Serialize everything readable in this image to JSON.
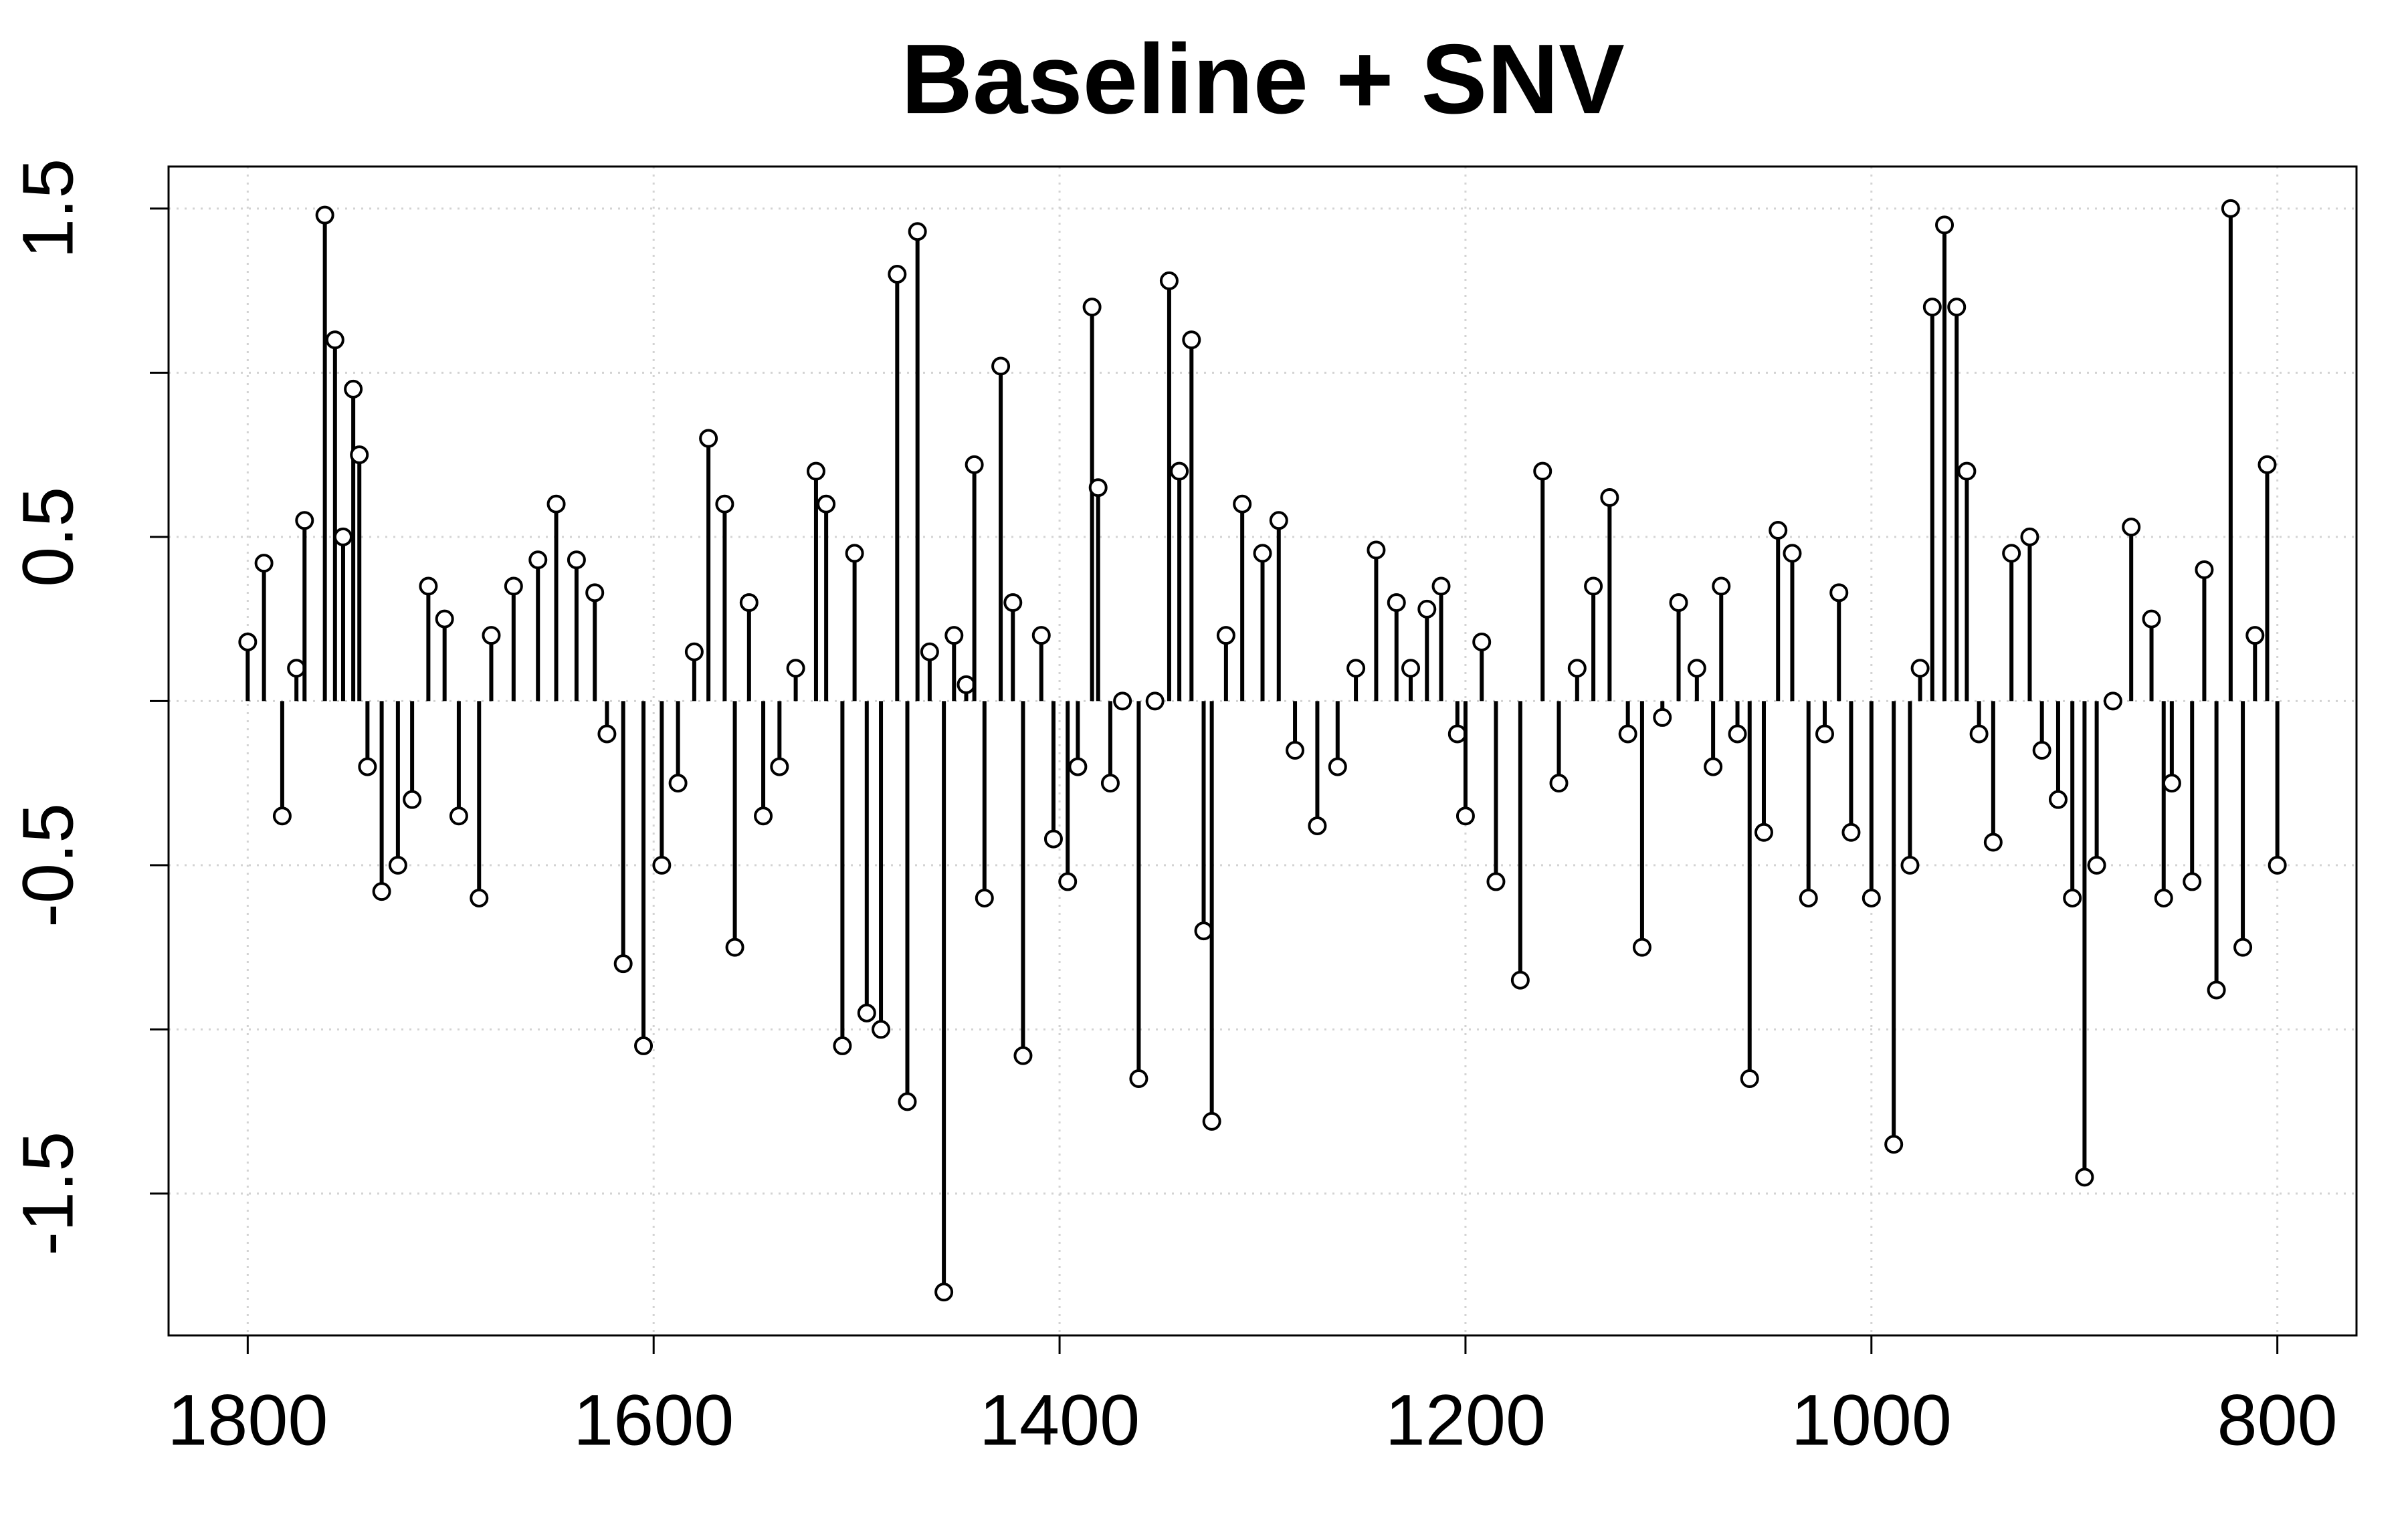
{
  "chart_data": {
    "type": "stem",
    "title": "Baseline + SNV",
    "x": [
      1800,
      1792,
      1783,
      1776,
      1772,
      1762,
      1757,
      1753,
      1748,
      1745,
      1741,
      1734,
      1726,
      1719,
      1711,
      1703,
      1696,
      1686,
      1680,
      1669,
      1657,
      1648,
      1638,
      1629,
      1623,
      1615,
      1605,
      1596,
      1588,
      1580,
      1573,
      1565,
      1560,
      1553,
      1546,
      1538,
      1530,
      1520,
      1515,
      1507,
      1501,
      1495,
      1488,
      1480,
      1475,
      1470,
      1464,
      1457,
      1452,
      1446,
      1442,
      1437,
      1429,
      1423,
      1418,
      1409,
      1403,
      1396,
      1391,
      1384,
      1381,
      1375,
      1369,
      1361,
      1353,
      1346,
      1341,
      1335,
      1329,
      1325,
      1318,
      1310,
      1300,
      1292,
      1284,
      1273,
      1263,
      1254,
      1244,
      1234,
      1227,
      1219,
      1212,
      1204,
      1200,
      1192,
      1185,
      1173,
      1162,
      1154,
      1145,
      1137,
      1129,
      1120,
      1113,
      1103,
      1095,
      1086,
      1078,
      1074,
      1066,
      1060,
      1053,
      1046,
      1039,
      1031,
      1023,
      1016,
      1010,
      1000,
      989,
      981,
      976,
      970,
      964,
      958,
      953,
      947,
      940,
      931,
      922,
      916,
      908,
      901,
      895,
      889,
      881,
      872,
      862,
      856,
      852,
      842,
      836,
      830,
      823,
      817,
      811,
      805,
      800
    ],
    "values": [
      0.18,
      0.42,
      -0.35,
      0.1,
      0.55,
      1.48,
      1.1,
      0.5,
      0.95,
      0.75,
      -0.2,
      -0.58,
      -0.5,
      -0.3,
      0.35,
      0.25,
      -0.35,
      -0.6,
      0.2,
      0.35,
      0.43,
      0.6,
      0.43,
      0.33,
      -0.1,
      -0.8,
      -1.05,
      -0.5,
      -0.25,
      0.15,
      0.8,
      0.6,
      -0.75,
      0.3,
      -0.35,
      -0.2,
      0.1,
      0.7,
      0.6,
      -1.05,
      0.45,
      -0.95,
      -1.0,
      1.3,
      -1.22,
      1.43,
      0.15,
      -1.8,
      0.2,
      0.05,
      0.72,
      -0.6,
      1.02,
      0.3,
      -1.08,
      0.2,
      -0.42,
      -0.55,
      -0.2,
      1.2,
      0.65,
      -0.25,
      0.0,
      -1.15,
      0.0,
      1.28,
      0.7,
      1.1,
      -0.7,
      -1.28,
      0.2,
      0.6,
      0.45,
      0.55,
      -0.15,
      -0.38,
      -0.2,
      0.1,
      0.46,
      0.3,
      0.1,
      0.28,
      0.35,
      -0.1,
      -0.35,
      0.18,
      -0.55,
      -0.85,
      0.7,
      -0.25,
      0.1,
      0.35,
      0.62,
      -0.1,
      -0.75,
      -0.05,
      0.3,
      0.1,
      -0.2,
      0.35,
      -0.1,
      -1.15,
      -0.4,
      0.52,
      0.45,
      -0.6,
      -0.1,
      0.33,
      -0.4,
      -0.6,
      -1.35,
      -0.5,
      0.1,
      1.2,
      1.45,
      1.2,
      0.7,
      -0.1,
      -0.43,
      0.45,
      0.5,
      -0.15,
      -0.3,
      -0.6,
      -1.45,
      -0.5,
      0.0,
      0.53,
      0.25,
      -0.6,
      -0.25,
      -0.55,
      0.4,
      -0.88,
      1.5,
      -0.75,
      0.2,
      0.72,
      -0.5
    ],
    "color": "#000000",
    "xlim": [
      1839,
      761
    ],
    "xticks": [
      1800,
      1600,
      1400,
      1200,
      1000,
      800
    ],
    "ylim": [
      -1.932,
      1.628
    ],
    "yticks": [
      -1.5,
      -0.5,
      0.5,
      1.5
    ],
    "ygrid": [
      -1.5,
      -1,
      -0.5,
      0,
      0.5,
      1,
      1.5
    ],
    "grid": true
  }
}
